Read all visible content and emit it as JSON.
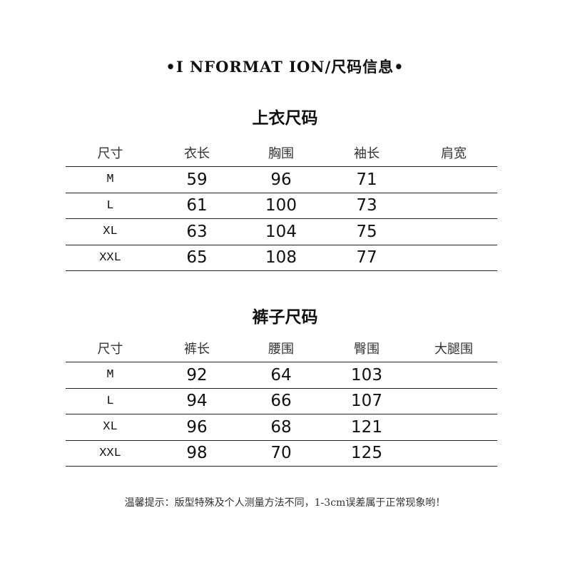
{
  "title": "•I NFORMAT ION/尺码信息•",
  "top": {
    "title": "上衣尺码",
    "headers": [
      "尺寸",
      "衣长",
      "胸围",
      "袖长",
      "肩宽"
    ],
    "rows": [
      [
        "M",
        "59",
        "96",
        "71",
        ""
      ],
      [
        "L",
        "61",
        "100",
        "73",
        ""
      ],
      [
        "XL",
        "63",
        "104",
        "75",
        ""
      ],
      [
        "XXL",
        "65",
        "108",
        "77",
        ""
      ]
    ]
  },
  "bottom": {
    "title": "裤子尺码",
    "headers": [
      "尺寸",
      "裤长",
      "腰围",
      "臀围",
      "大腿围"
    ],
    "rows": [
      [
        "M",
        "92",
        "64",
        "103",
        ""
      ],
      [
        "L",
        "94",
        "66",
        "107",
        ""
      ],
      [
        "XL",
        "96",
        "68",
        "121",
        ""
      ],
      [
        "XXL",
        "98",
        "70",
        "125",
        ""
      ]
    ]
  },
  "note": "温馨提示：版型特殊及个人测量方法不同，1-3cm误差属于正常现象哟！"
}
